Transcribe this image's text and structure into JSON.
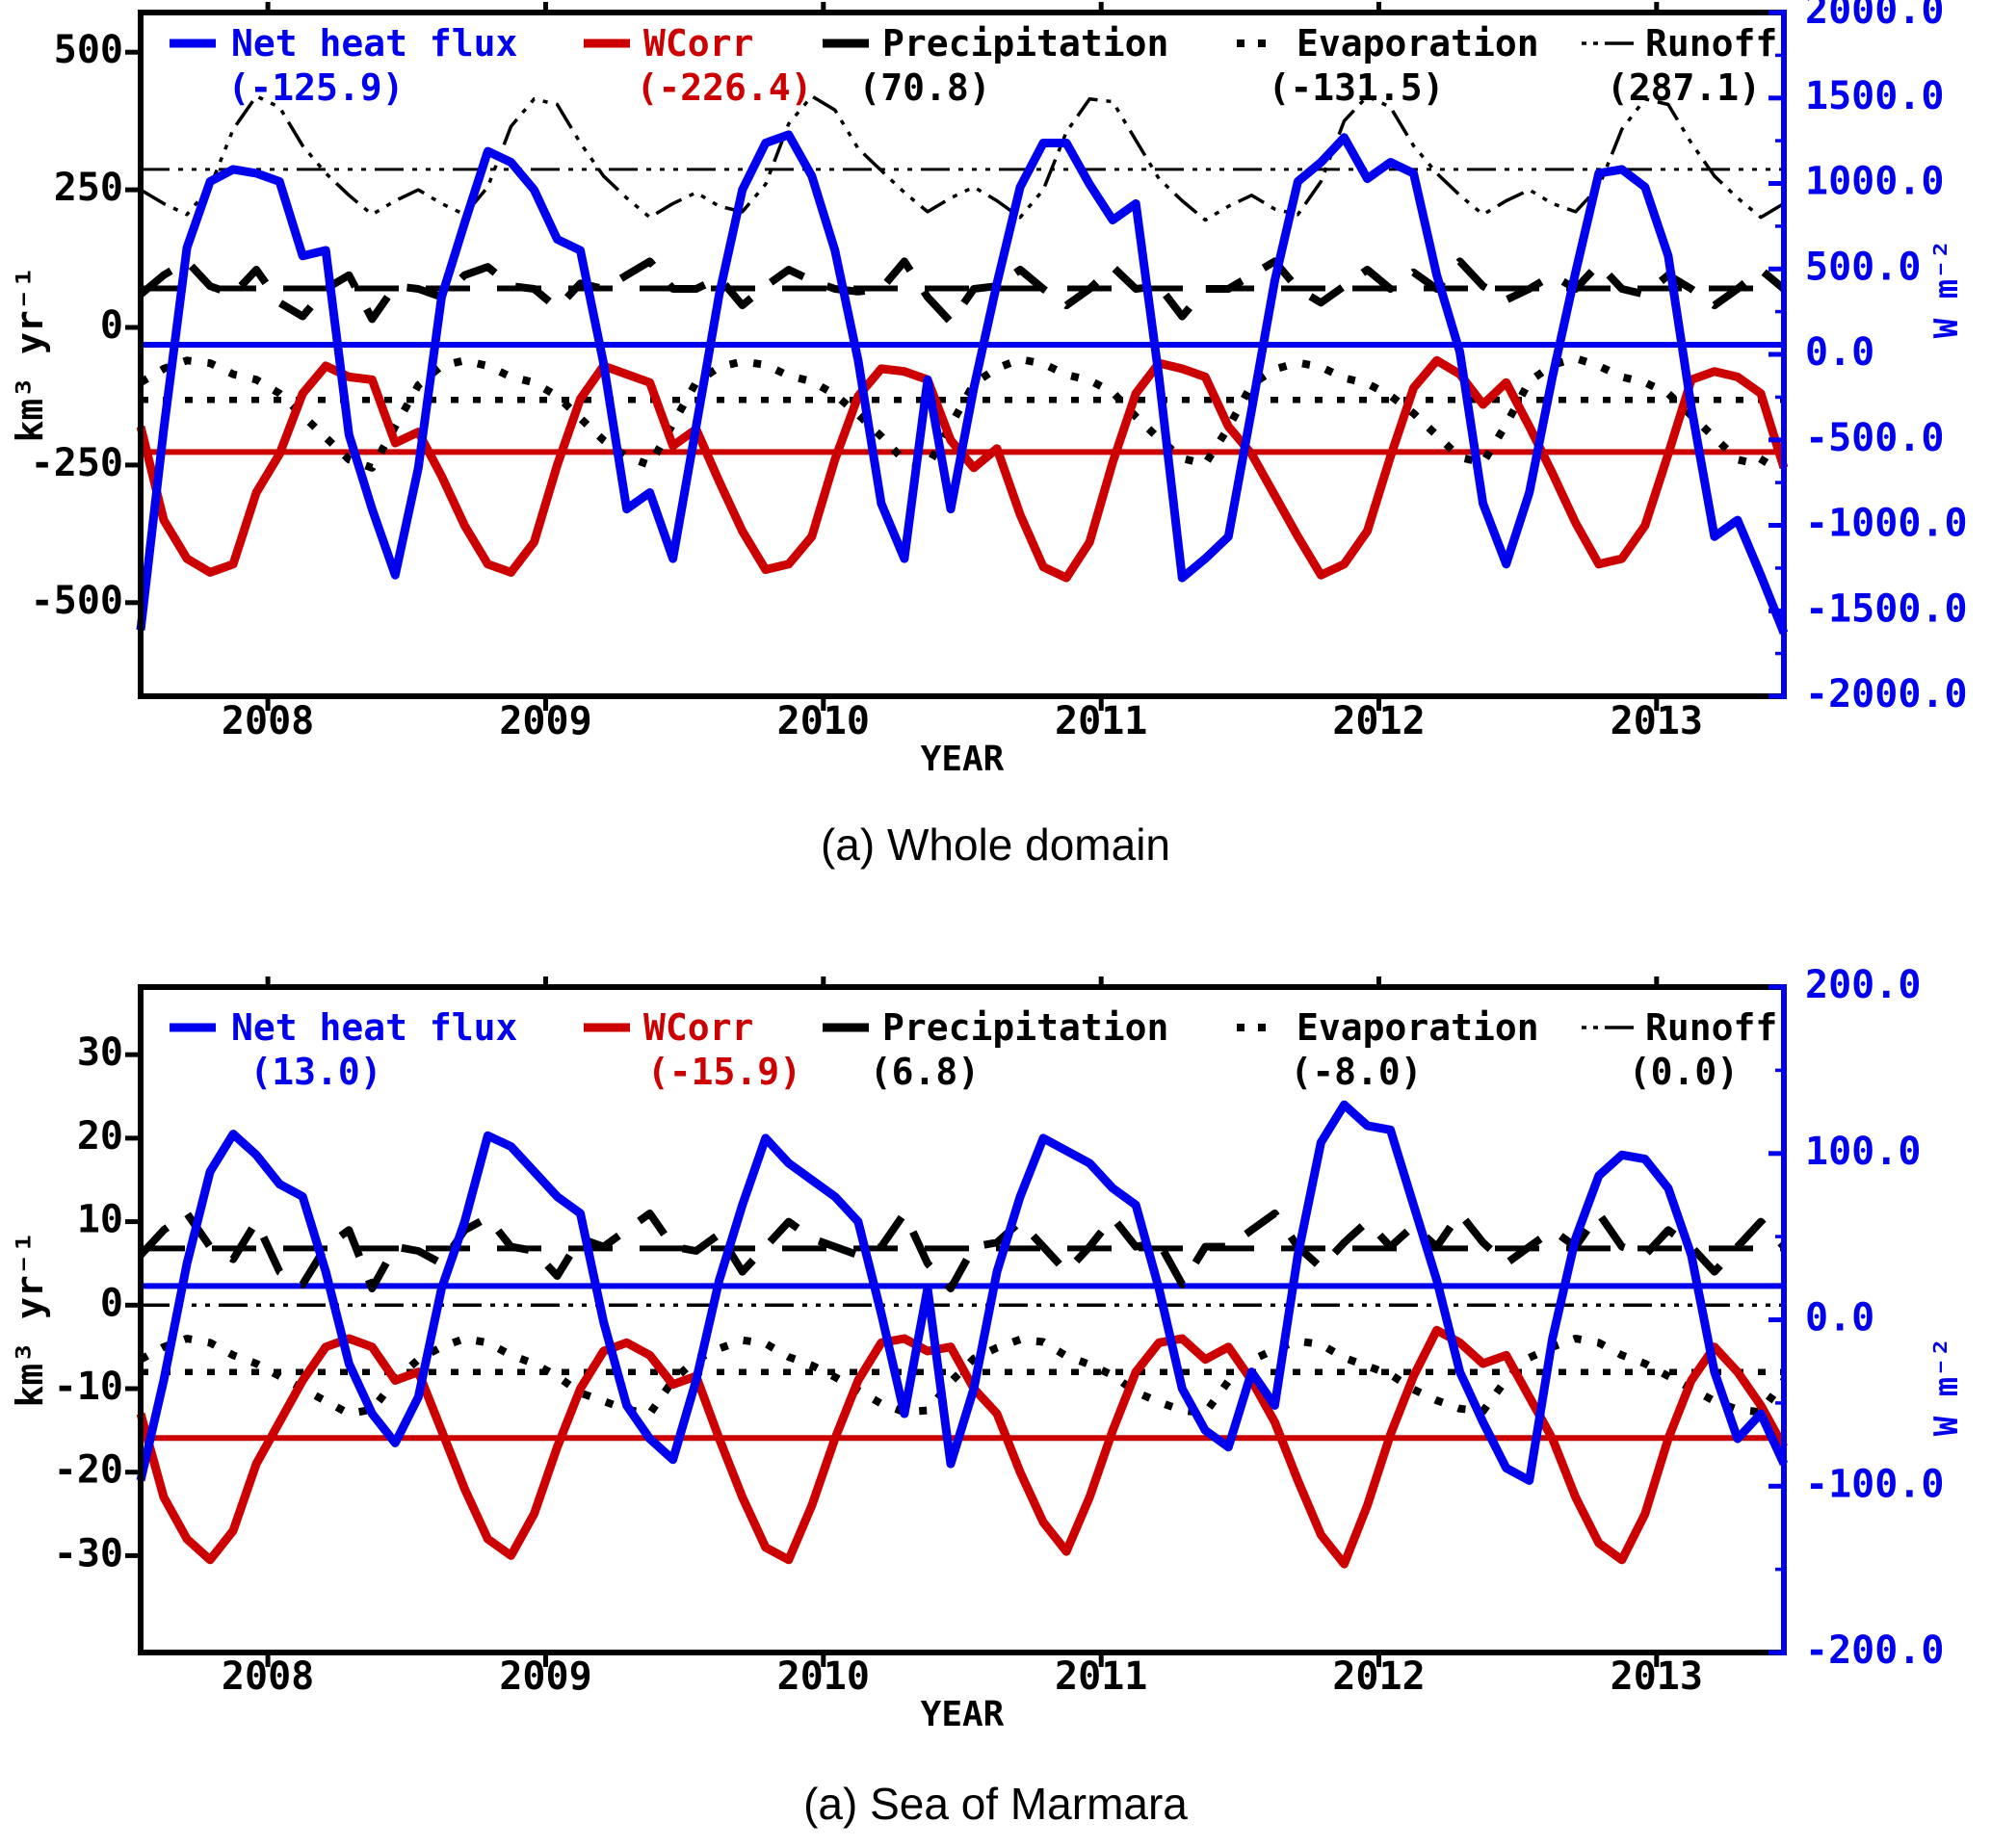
{
  "colors": {
    "net_heat_flux": "#0000ee",
    "wcorr": "#cc0000",
    "black": "#000000",
    "background": "#ffffff"
  },
  "chart_data": [
    {
      "type": "line",
      "caption": "(a) Whole domain",
      "xlabel": "YEAR",
      "ylabel_left": "km³ yr⁻¹",
      "ylabel_right": "W m⁻²",
      "x_start_year": 2007.5417,
      "x_step_months": 1,
      "n_months": 72,
      "x_ticks": [
        2008,
        2009,
        2010,
        2011,
        2012,
        2013
      ],
      "x_tick_labels": [
        "2008",
        "2009",
        "2010",
        "2011",
        "2012",
        "2013"
      ],
      "left_axis": {
        "ticks": [
          500,
          250,
          0,
          -250,
          -500
        ],
        "labels": [
          "500",
          "250",
          "0",
          "-250",
          "-500"
        ],
        "approx_view_range": [
          -670,
          572
        ]
      },
      "right_axis": {
        "ticks": [
          2000,
          1500,
          1000,
          500,
          0,
          -500,
          -1000,
          -1500,
          -2000
        ],
        "labels": [
          "2000.0",
          "1500.0",
          "1000.0",
          "500.0",
          "0.0",
          "-500.0",
          "-1000.0",
          "-1500.0",
          "-2000.0"
        ],
        "range": [
          -2000,
          2000
        ],
        "color": "#0000ee"
      },
      "grid": false,
      "legend_position": "top-inside-row",
      "series": [
        {
          "key": "runoff",
          "label": "Runoff",
          "mean_label": "(287.1)",
          "mean_value": 287.1,
          "mean_plot_left_units": 287.1,
          "color": "#000000",
          "line_style": "dash-dot-dot-dot",
          "axis": "left",
          "values": [
            250,
            225,
            205,
            255,
            360,
            420,
            400,
            330,
            280,
            240,
            205,
            230,
            250,
            225,
            205,
            255,
            365,
            415,
            405,
            335,
            275,
            235,
            200,
            225,
            245,
            220,
            210,
            260,
            370,
            420,
            395,
            325,
            285,
            245,
            210,
            235,
            255,
            230,
            200,
            250,
            355,
            415,
            410,
            340,
            270,
            230,
            195,
            220,
            240,
            215,
            205,
            265,
            375,
            420,
            400,
            330,
            280,
            240,
            205,
            230,
            250,
            225,
            210,
            255,
            360,
            415,
            405,
            335,
            275,
            235,
            200,
            225
          ]
        },
        {
          "key": "evaporation",
          "label": "Evaporation",
          "mean_label": "(-131.5)",
          "mean_value": -131.5,
          "mean_plot_left_units": -131.5,
          "color": "#000000",
          "line_style": "dotted",
          "axis": "left",
          "values": [
            -100,
            -75,
            -60,
            -65,
            -85,
            -95,
            -120,
            -160,
            -200,
            -240,
            -255,
            -180,
            -105,
            -70,
            -60,
            -70,
            -90,
            -100,
            -125,
            -165,
            -205,
            -235,
            -250,
            -175,
            -100,
            -72,
            -62,
            -68,
            -88,
            -98,
            -122,
            -158,
            -198,
            -242,
            -252,
            -178,
            -102,
            -74,
            -58,
            -66,
            -86,
            -96,
            -118,
            -162,
            -202,
            -238,
            -248,
            -182,
            -104,
            -76,
            -64,
            -72,
            -92,
            -102,
            -124,
            -156,
            -196,
            -236,
            -246,
            -176,
            -98,
            -68,
            -56,
            -70,
            -90,
            -100,
            -120,
            -160,
            -200,
            -240,
            -250,
            -180
          ]
        },
        {
          "key": "precipitation",
          "label": "Precipitation",
          "mean_label": "(70.8)",
          "mean_value": 70.8,
          "mean_plot_left_units": 70.8,
          "color": "#000000",
          "line_style": "long-dash",
          "axis": "left",
          "values": [
            60,
            95,
            120,
            75,
            60,
            105,
            45,
            20,
            70,
            95,
            15,
            75,
            70,
            55,
            95,
            110,
            75,
            70,
            35,
            80,
            70,
            95,
            120,
            70,
            70,
            90,
            40,
            75,
            105,
            85,
            70,
            65,
            70,
            120,
            55,
            10,
            70,
            75,
            105,
            70,
            40,
            70,
            110,
            70,
            75,
            20,
            70,
            70,
            95,
            120,
            70,
            45,
            75,
            105,
            70,
            100,
            70,
            120,
            75,
            50,
            70,
            95,
            70,
            115,
            70,
            60,
            95,
            70,
            40,
            70,
            105,
            70
          ]
        },
        {
          "key": "wcorr",
          "label": "WCorr",
          "mean_label": "(-226.4)",
          "mean_value": -226.4,
          "mean_plot_left_units": -226.4,
          "color": "#cc0000",
          "line_style": "solid",
          "axis": "left",
          "values": [
            -180,
            -350,
            -420,
            -445,
            -430,
            -300,
            -230,
            -120,
            -70,
            -90,
            -95,
            -210,
            -190,
            -270,
            -360,
            -430,
            -445,
            -390,
            -250,
            -130,
            -70,
            -85,
            -100,
            -215,
            -185,
            -280,
            -370,
            -440,
            -430,
            -380,
            -240,
            -125,
            -75,
            -80,
            -95,
            -205,
            -255,
            -220,
            -340,
            -435,
            -455,
            -390,
            -245,
            -120,
            -65,
            -75,
            -90,
            -180,
            -230,
            -305,
            -380,
            -450,
            -430,
            -370,
            -235,
            -110,
            -60,
            -85,
            -140,
            -100,
            -180,
            -265,
            -355,
            -430,
            -420,
            -360,
            -230,
            -95,
            -80,
            -90,
            -120,
            -255
          ]
        },
        {
          "key": "net_heat_flux",
          "label": "Net heat flux",
          "mean_label": "(-125.9)",
          "mean_value": -125.9,
          "mean_units": "W m-2",
          "mean_plot_left_units": -31.5,
          "color": "#0000ee",
          "line_style": "solid",
          "axis": "left",
          "values": [
            -550,
            -185,
            145,
            265,
            287,
            280,
            265,
            130,
            140,
            -195,
            -330,
            -450,
            -255,
            55,
            190,
            320,
            300,
            250,
            160,
            140,
            -65,
            -330,
            -300,
            -420,
            -180,
            60,
            250,
            335,
            350,
            275,
            140,
            -60,
            -320,
            -420,
            -95,
            -330,
            -110,
            80,
            255,
            335,
            335,
            260,
            195,
            225,
            -90,
            -455,
            -420,
            -380,
            -150,
            85,
            265,
            300,
            345,
            270,
            300,
            280,
            95,
            -45,
            -320,
            -430,
            -300,
            -90,
            100,
            280,
            287,
            255,
            130,
            -145,
            -380,
            -350,
            -450,
            -555
          ]
        }
      ]
    },
    {
      "type": "line",
      "caption": "(a) Sea of Marmara",
      "xlabel": "YEAR",
      "ylabel_left": "km³ yr⁻¹",
      "ylabel_right": "W m⁻²",
      "x_start_year": 2007.5417,
      "x_step_months": 1,
      "n_months": 72,
      "x_ticks": [
        2008,
        2009,
        2010,
        2011,
        2012,
        2013
      ],
      "x_tick_labels": [
        "2008",
        "2009",
        "2010",
        "2011",
        "2012",
        "2013"
      ],
      "left_axis": {
        "ticks": [
          30,
          20,
          10,
          0,
          -10,
          -20,
          -30
        ],
        "labels": [
          "30",
          "20",
          "10",
          "0",
          "-10",
          "-20",
          "-30"
        ],
        "approx_view_range": [
          -41.6,
          38.1
        ]
      },
      "right_axis": {
        "ticks": [
          200,
          100,
          0,
          -100,
          -200
        ],
        "labels": [
          "200.0",
          "100.0",
          "0.0",
          "-100.0",
          "-200.0"
        ],
        "range": [
          -200,
          200
        ],
        "color": "#0000ee"
      },
      "grid": false,
      "legend_position": "top-inside-row",
      "series": [
        {
          "key": "runoff",
          "label": "Runoff",
          "mean_label": "(0.0)",
          "mean_value": 0.0,
          "mean_plot_left_units": 0.0,
          "color": "#000000",
          "line_style": "dash-dot-dot-dot",
          "axis": "left",
          "values": 0
        },
        {
          "key": "evaporation",
          "label": "Evaporation",
          "mean_label": "(-8.0)",
          "mean_value": -8.0,
          "mean_plot_left_units": -8.0,
          "color": "#000000",
          "line_style": "dotted",
          "axis": "left",
          "values": [
            -6.5,
            -5,
            -4,
            -4.5,
            -6,
            -7,
            -8.5,
            -10,
            -11.5,
            -13,
            -12.5,
            -9,
            -6.5,
            -5,
            -4,
            -4.5,
            -6,
            -7,
            -8.5,
            -10.5,
            -11.5,
            -12.5,
            -13,
            -9,
            -6.5,
            -5.2,
            -4.2,
            -4.6,
            -6.2,
            -7.2,
            -8.6,
            -10.2,
            -11.8,
            -12.8,
            -12.6,
            -9.2,
            -6.4,
            -5.1,
            -4.1,
            -4.4,
            -6.1,
            -7.1,
            -8.4,
            -10.4,
            -11.6,
            -12.6,
            -12.9,
            -9.1,
            -6.6,
            -5.3,
            -4.3,
            -4.7,
            -6.3,
            -7.3,
            -8.3,
            -10.1,
            -11.4,
            -12.4,
            -12.7,
            -8.9,
            -6.3,
            -5,
            -4,
            -4.5,
            -6,
            -7,
            -8.5,
            -10,
            -11.5,
            -12.5,
            -12.8,
            -9
          ]
        },
        {
          "key": "precipitation",
          "label": "Precipitation",
          "mean_label": "(6.8)",
          "mean_value": 6.8,
          "mean_plot_left_units": 6.8,
          "color": "#000000",
          "line_style": "long-dash",
          "axis": "left",
          "values": [
            6,
            9,
            11,
            7,
            5.5,
            10,
            4,
            2.5,
            7,
            9,
            2,
            7,
            6.5,
            5,
            9,
            10.5,
            7,
            6.5,
            3.5,
            8,
            7,
            9,
            11,
            7,
            6.5,
            8.5,
            4,
            7,
            10,
            8,
            7,
            6,
            7,
            11,
            5,
            2,
            7,
            7.5,
            10,
            7,
            4,
            7,
            10.5,
            7,
            7.5,
            2.5,
            7,
            7,
            9,
            11,
            7,
            4.5,
            7.5,
            10,
            7,
            9.5,
            7,
            11,
            7.5,
            5,
            7,
            9,
            7,
            11,
            7,
            6,
            9,
            7,
            4,
            7,
            10,
            7
          ]
        },
        {
          "key": "wcorr",
          "label": "WCorr",
          "mean_label": "(-15.9)",
          "mean_value": -15.9,
          "mean_plot_left_units": -15.9,
          "color": "#cc0000",
          "line_style": "solid",
          "axis": "left",
          "values": [
            -13,
            -23,
            -28,
            -30.5,
            -27,
            -19,
            -14,
            -9,
            -5,
            -4,
            -5,
            -9,
            -8,
            -15,
            -22,
            -28,
            -30,
            -25,
            -17,
            -10,
            -5.5,
            -4.5,
            -6,
            -9.5,
            -8.5,
            -16,
            -23,
            -29,
            -30.5,
            -24,
            -16,
            -9,
            -4.5,
            -4,
            -5.5,
            -5,
            -10,
            -13,
            -20,
            -26,
            -29.5,
            -23,
            -15,
            -8,
            -4.5,
            -4,
            -6.5,
            -5,
            -9,
            -14,
            -21,
            -27.5,
            -31,
            -24,
            -15.5,
            -8.5,
            -3,
            -4.5,
            -7,
            -6,
            -11,
            -16,
            -23,
            -28.5,
            -30.5,
            -25,
            -16,
            -9,
            -5,
            -8,
            -12,
            -17
          ]
        },
        {
          "key": "net_heat_flux",
          "label": "Net heat flux",
          "mean_label": "(13.0)",
          "mean_value": 13.0,
          "mean_units": "W m-2",
          "mean_plot_left_units": 2.3,
          "color": "#0000ee",
          "line_style": "solid",
          "axis": "left",
          "values": [
            -21,
            -9,
            5,
            16,
            20.5,
            18,
            14.5,
            13,
            4,
            -7,
            -13,
            -16.5,
            -11,
            2,
            10,
            20.3,
            19,
            16,
            13,
            11,
            -2,
            -12,
            -16,
            -18.5,
            -9,
            3,
            12,
            20,
            17,
            15,
            13,
            10,
            -1,
            -13,
            2,
            -19,
            -10,
            4,
            13,
            20,
            18.5,
            17,
            14,
            12,
            2,
            -10,
            -15,
            -17,
            -8,
            -12,
            6,
            19.5,
            24,
            21.5,
            21,
            12,
            3,
            -8,
            -14,
            -19.5,
            -21,
            -4,
            8,
            15.5,
            18,
            17.5,
            14,
            6,
            -8,
            -16,
            -13,
            -19
          ]
        }
      ]
    }
  ],
  "legend_order": [
    "net_heat_flux",
    "wcorr",
    "precipitation",
    "evaporation",
    "runoff"
  ]
}
